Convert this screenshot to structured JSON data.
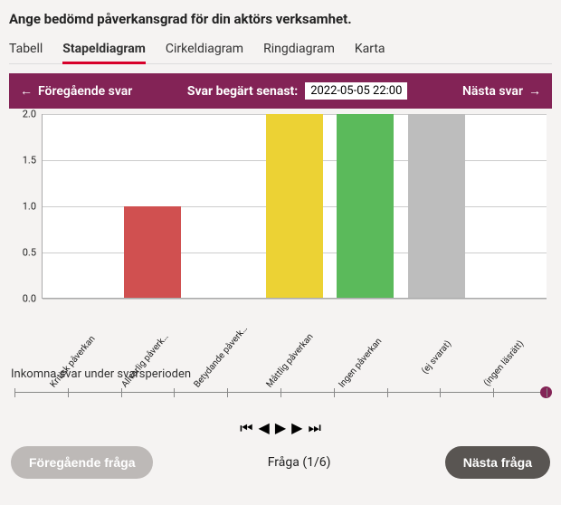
{
  "title": "Ange bedömd påverkansgrad för din aktörs verksamhet.",
  "tabs": {
    "tabell": "Tabell",
    "stapeldiagram": "Stapeldiagram",
    "cirkeldiagram": "Cirkeldiagram",
    "ringdiagram": "Ringdiagram",
    "karta": "Karta"
  },
  "navbar": {
    "prev": "Föregående svar",
    "deadline_label": "Svar begärt senast:",
    "deadline_value": "2022-05-05 22:00",
    "next": "Nästa svar"
  },
  "chart": {
    "type": "bar",
    "ylim": [
      0,
      2
    ],
    "ytick_step": 0.5,
    "yticks": [
      "0.0",
      "0.5",
      "1.0",
      "1.5",
      "2.0"
    ],
    "categories": [
      "Kritisk påverkan",
      "Allvarlig påverk…",
      "Betydande påverk…",
      "Måttlig påverkan",
      "Ingen påverkan",
      "(ej svarat)",
      "(ingen läsrätt)"
    ],
    "values": [
      0,
      1,
      0,
      2,
      2,
      2,
      0
    ],
    "bar_colors": [
      "#d05050",
      "#d05050",
      "#e8a33a",
      "#ecd234",
      "#5bba5b",
      "#bdbdbd",
      "#bdbdbd"
    ],
    "background_color": "#ffffff",
    "grid_color": "#cccccc",
    "axis_color": "#aaaaaa",
    "label_fontsize": 10,
    "tick_fontsize": 11
  },
  "caption": "Inkomna svar under svarsperioden",
  "timeline": {
    "ticks": 10,
    "knob_color": "#832356"
  },
  "pager": {
    "label": "Fråga (1/6)"
  },
  "buttons": {
    "prev_question": "Föregående fråga",
    "next_question": "Nästa fråga"
  },
  "colors": {
    "accent": "#832356",
    "tab_active_underline": "#d7002a",
    "btn_prev_bg": "#bdb9b7",
    "btn_next_bg": "#595552"
  }
}
